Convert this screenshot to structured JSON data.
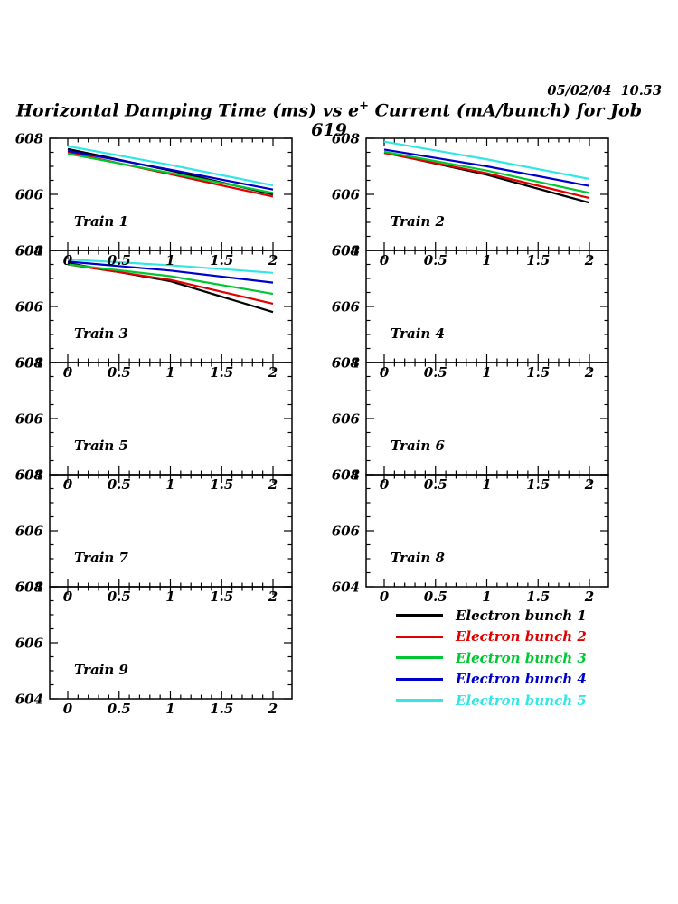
{
  "header": {
    "datetime": "05/02/04  10.53",
    "title": {
      "prefix": "Horizontal Damping Time (ms) vs e",
      "sup": "+",
      "suffix": " Current (mA/bunch) for Job 619"
    }
  },
  "legend": {
    "items": [
      {
        "label": "Electron bunch 1",
        "color": "#000000"
      },
      {
        "label": "Electron bunch 2",
        "color": "#e00000"
      },
      {
        "label": "Electron bunch 3",
        "color": "#00c832"
      },
      {
        "label": "Electron bunch 4",
        "color": "#0000cc"
      },
      {
        "label": "Electron bunch 5",
        "color": "#33e6e6"
      }
    ]
  },
  "chart_data": {
    "type": "line",
    "title": "Horizontal Damping Time (ms) vs e+ Current (mA/bunch) for Job 619",
    "xlim": [
      0,
      2
    ],
    "ylim": [
      604,
      608
    ],
    "xticks": [
      0,
      0.5,
      1,
      1.5,
      2
    ],
    "yticks": [
      608,
      606,
      604
    ],
    "x_minor_step": 0.1,
    "y_minor_step": 0.5,
    "grid": false,
    "legend_position": "bottom-right",
    "panels": [
      {
        "name": "Train 1",
        "grid_pos": [
          0,
          0
        ],
        "series": [
          {
            "name": "Electron bunch 1",
            "color": "#000000",
            "x": [
              0,
              1,
              2
            ],
            "y": [
              607.62,
              606.85,
              606.0
            ]
          },
          {
            "name": "Electron bunch 2",
            "color": "#e00000",
            "x": [
              0,
              1,
              2
            ],
            "y": [
              607.5,
              606.72,
              605.92
            ]
          },
          {
            "name": "Electron bunch 3",
            "color": "#00c832",
            "x": [
              0,
              1,
              2
            ],
            "y": [
              607.45,
              606.76,
              606.05
            ]
          },
          {
            "name": "Electron bunch 4",
            "color": "#0000cc",
            "x": [
              0,
              1,
              2
            ],
            "y": [
              607.55,
              606.88,
              606.17
            ]
          },
          {
            "name": "Electron bunch 5",
            "color": "#33e6e6",
            "x": [
              0,
              1,
              2
            ],
            "y": [
              607.72,
              607.05,
              606.32
            ]
          }
        ]
      },
      {
        "name": "Train 2",
        "grid_pos": [
          0,
          1
        ],
        "series": [
          {
            "name": "Electron bunch 1",
            "color": "#000000",
            "x": [
              0,
              1,
              2
            ],
            "y": [
              607.5,
              606.7,
              605.7
            ]
          },
          {
            "name": "Electron bunch 2",
            "color": "#e00000",
            "x": [
              0,
              1,
              2
            ],
            "y": [
              607.48,
              606.75,
              605.87
            ]
          },
          {
            "name": "Electron bunch 3",
            "color": "#00c832",
            "x": [
              0,
              1,
              2
            ],
            "y": [
              607.52,
              606.85,
              606.05
            ]
          },
          {
            "name": "Electron bunch 4",
            "color": "#0000cc",
            "x": [
              0,
              1,
              2
            ],
            "y": [
              607.6,
              607.0,
              606.3
            ]
          },
          {
            "name": "Electron bunch 5",
            "color": "#33e6e6",
            "x": [
              0,
              1,
              2
            ],
            "y": [
              607.88,
              607.25,
              606.55
            ]
          }
        ]
      },
      {
        "name": "Train 3",
        "grid_pos": [
          1,
          0
        ],
        "series": [
          {
            "name": "Electron bunch 1",
            "color": "#000000",
            "x": [
              0,
              1,
              2
            ],
            "y": [
              607.55,
              606.9,
              605.8
            ]
          },
          {
            "name": "Electron bunch 2",
            "color": "#e00000",
            "x": [
              0,
              1,
              2
            ],
            "y": [
              607.5,
              606.95,
              606.1
            ]
          },
          {
            "name": "Electron bunch 3",
            "color": "#00c832",
            "x": [
              0,
              1,
              2
            ],
            "y": [
              607.5,
              607.08,
              606.45
            ]
          },
          {
            "name": "Electron bunch 4",
            "color": "#0000cc",
            "x": [
              0,
              1,
              2
            ],
            "y": [
              607.6,
              607.28,
              606.85
            ]
          },
          {
            "name": "Electron bunch 5",
            "color": "#33e6e6",
            "x": [
              0,
              1,
              2
            ],
            "y": [
              607.68,
              607.47,
              607.2
            ]
          }
        ]
      },
      {
        "name": "Train 4",
        "grid_pos": [
          1,
          1
        ],
        "series": []
      },
      {
        "name": "Train 5",
        "grid_pos": [
          2,
          0
        ],
        "series": []
      },
      {
        "name": "Train 6",
        "grid_pos": [
          2,
          1
        ],
        "series": []
      },
      {
        "name": "Train 7",
        "grid_pos": [
          3,
          0
        ],
        "series": []
      },
      {
        "name": "Train 8",
        "grid_pos": [
          3,
          1
        ],
        "series": []
      },
      {
        "name": "Train 9",
        "grid_pos": [
          4,
          0
        ],
        "series": []
      }
    ]
  }
}
